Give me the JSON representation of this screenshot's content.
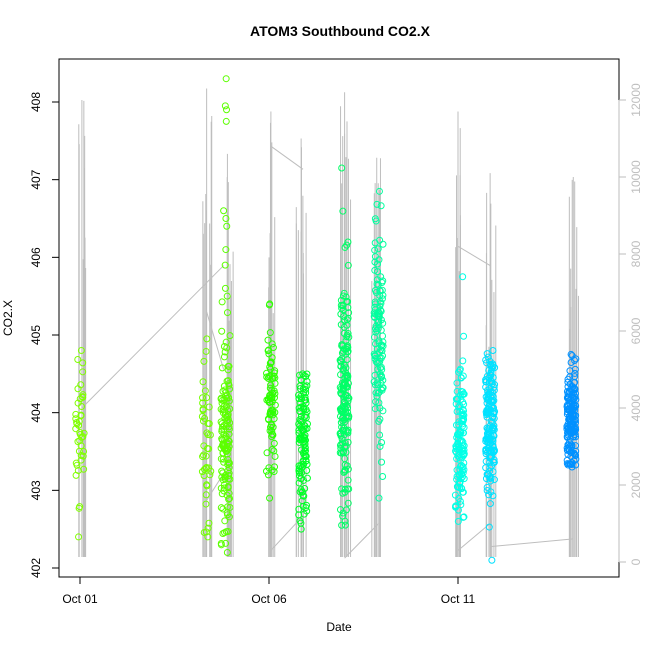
{
  "chart_data": {
    "type": "scatter",
    "title": "ATOM3 Southbound CO2.X",
    "xlabel": "Date",
    "ylabel": "CO2.X",
    "x_ticks": [
      "Oct 01",
      "Oct 06",
      "Oct 11"
    ],
    "y_ticks": [
      "402",
      "403",
      "404",
      "405",
      "406",
      "407",
      "408"
    ],
    "y2_ticks": [
      "0",
      "2000",
      "4000",
      "6000",
      "8000",
      "10000",
      "12000"
    ],
    "xlim": [
      "2016-10-01",
      "2016-10-15"
    ],
    "ylim": [
      402,
      408.3
    ],
    "y2lim": [
      0,
      12000
    ],
    "grid": false,
    "secondary_axis_color": "#bebebe",
    "clusters": [
      {
        "date": "2016-10-01",
        "min": 402.4,
        "max": 404.8,
        "center": 403.8,
        "spread": 0.5,
        "count": 40,
        "color": "#80ff00",
        "outliers": []
      },
      {
        "date": "2016-10-04.35",
        "min": 402.4,
        "max": 404.95,
        "center": 403.5,
        "spread": 0.6,
        "count": 40,
        "color": "#73ff00",
        "outliers": []
      },
      {
        "date": "2016-10-04.85",
        "min": 402.2,
        "max": 405.6,
        "center": 403.7,
        "spread": 0.6,
        "count": 140,
        "color": "#5cff00",
        "outliers": [
          408.3,
          407.95,
          407.9,
          407.75,
          406.6,
          406.5,
          406.4,
          406.1,
          405.9,
          405.5
        ]
      },
      {
        "date": "2016-10-06.05",
        "min": 402.9,
        "max": 405.4,
        "center": 404.1,
        "spread": 0.4,
        "count": 80,
        "color": "#2eff00",
        "outliers": []
      },
      {
        "date": "2016-10-06.9",
        "min": 402.5,
        "max": 404.5,
        "center": 403.6,
        "spread": 0.5,
        "count": 120,
        "color": "#00ff26",
        "outliers": []
      },
      {
        "date": "2016-10-08.0",
        "min": 402.55,
        "max": 407.15,
        "center": 404.2,
        "spread": 0.8,
        "count": 170,
        "color": "#00ff66",
        "outliers": []
      },
      {
        "date": "2016-10-08.9",
        "min": 402.9,
        "max": 406.85,
        "center": 404.8,
        "spread": 0.7,
        "count": 120,
        "color": "#00ff9e",
        "outliers": []
      },
      {
        "date": "2016-10-11.05",
        "min": 402.6,
        "max": 405.75,
        "center": 403.6,
        "spread": 0.5,
        "count": 130,
        "color": "#00ffe6",
        "outliers": []
      },
      {
        "date": "2016-10-11.85",
        "min": 402.1,
        "max": 404.8,
        "center": 403.8,
        "spread": 0.45,
        "count": 170,
        "color": "#00e1ff",
        "outliers": []
      },
      {
        "date": "2016-10-14.0",
        "min": 403.3,
        "max": 404.75,
        "center": 403.9,
        "spread": 0.35,
        "count": 170,
        "color": "#0091ff",
        "outliers": []
      }
    ],
    "secondary_series": {
      "color": "#bebebe",
      "spikes": [
        {
          "date": "2016-10-01.05",
          "top": 12000
        },
        {
          "date": "2016-10-04.35",
          "top": 12300
        },
        {
          "date": "2016-10-04.9",
          "top": 10600
        },
        {
          "date": "2016-10-06.05",
          "top": 11700
        },
        {
          "date": "2016-10-06.85",
          "top": 11000
        },
        {
          "date": "2016-10-08.0",
          "top": 12200
        },
        {
          "date": "2016-10-08.85",
          "top": 10500
        },
        {
          "date": "2016-10-11.0",
          "top": 11700
        },
        {
          "date": "2016-10-11.85",
          "top": 10100
        },
        {
          "date": "2016-10-14.05",
          "top": 10000
        }
      ],
      "connectors": [
        [
          [
            "2016-10-01.05",
            4000
          ],
          [
            "2016-10-04.8",
            7700
          ]
        ],
        [
          [
            "2016-10-04.35",
            6500
          ],
          [
            "2016-10-04.8",
            5000
          ]
        ],
        [
          [
            "2016-10-04.35",
            1600
          ],
          [
            "2016-10-04.8",
            2300
          ]
        ],
        [
          [
            "2016-10-06.05",
            10800
          ],
          [
            "2016-10-06.9",
            10200
          ]
        ],
        [
          [
            "2016-10-06.05",
            300
          ],
          [
            "2016-10-06.9",
            1200
          ]
        ],
        [
          [
            "2016-10-08.0",
            100
          ],
          [
            "2016-10-08.9",
            1000
          ]
        ],
        [
          [
            "2016-10-11.0",
            8200
          ],
          [
            "2016-10-11.85",
            7700
          ]
        ],
        [
          [
            "2016-10-11.0",
            300
          ],
          [
            "2016-10-11.85",
            1000
          ]
        ],
        [
          [
            "2016-10-11.85",
            400
          ],
          [
            "2016-10-14.05",
            600
          ]
        ]
      ]
    }
  }
}
